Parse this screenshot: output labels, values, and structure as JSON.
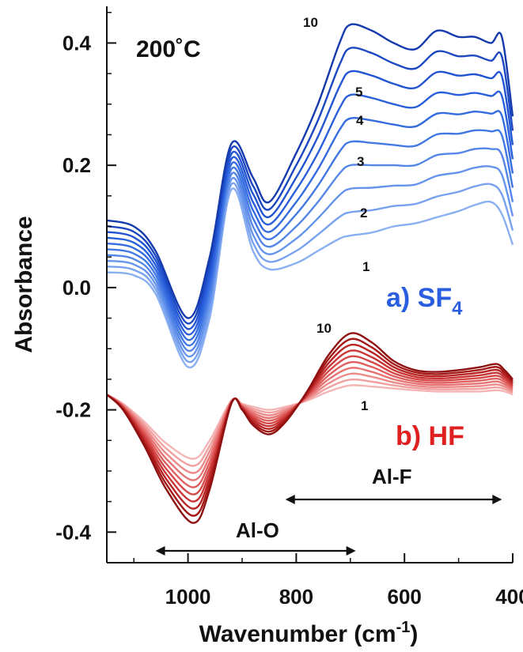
{
  "chart_data": {
    "type": "line",
    "xlabel": "Wavenumber (cm",
    "xlabel_sup": "-1",
    "xlabel_end": ")",
    "ylabel": "Absorbance",
    "xlim": [
      1150,
      400
    ],
    "ylim": [
      -0.45,
      0.46
    ],
    "x_ticks": [
      1000,
      800,
      600,
      400
    ],
    "x_tick_labels": [
      "1000",
      "800",
      "600",
      "400"
    ],
    "y_ticks": [
      0.4,
      0.2,
      0.0,
      -0.2,
      -0.4
    ],
    "y_tick_labels": [
      "0.4",
      "0.2",
      "0.0",
      "-0.2",
      "-0.4"
    ],
    "annotations": {
      "temperature": "200˚C",
      "sf4_label": "a) SF",
      "sf4_sub": "4",
      "hf_label": "b) HF",
      "alo_label": "Al-O",
      "alf_label": "Al-F",
      "sf4_curve_labels": [
        "10",
        "5",
        "4",
        "3",
        "2",
        "1"
      ],
      "hf_curve_labels": [
        "10",
        "1"
      ]
    },
    "alo_arrow": [
      1060,
      690
    ],
    "alf_arrow": [
      820,
      420
    ],
    "sf4_series": {
      "colors": [
        "#8ab0f2",
        "#78a2ef",
        "#6694ec",
        "#5486e8",
        "#4278e4",
        "#356be0",
        "#2a5fdb",
        "#2254d2",
        "#1b47c1",
        "#153aad"
      ],
      "x": [
        1150,
        1100,
        1060,
        1000,
        960,
        920,
        880,
        850,
        800,
        760,
        720,
        700,
        660,
        620,
        580,
        540,
        500,
        470,
        440,
        420,
        400
      ],
      "curve_1": [
        0.025,
        0.02,
        -0.01,
        -0.13,
        -0.05,
        0.16,
        0.06,
        0.03,
        0.04,
        0.06,
        0.08,
        0.085,
        0.09,
        0.1,
        0.105,
        0.115,
        0.125,
        0.135,
        0.14,
        0.12,
        0.07
      ],
      "curve_10": [
        0.11,
        0.1,
        0.06,
        -0.05,
        0.05,
        0.235,
        0.18,
        0.14,
        0.22,
        0.3,
        0.4,
        0.43,
        0.42,
        0.4,
        0.39,
        0.42,
        0.41,
        0.41,
        0.4,
        0.41,
        0.28
      ]
    },
    "hf_series": {
      "colors": [
        "#f5b5b5",
        "#f1a0a0",
        "#ec8a8a",
        "#e67474",
        "#df5e5e",
        "#d64848",
        "#c93535",
        "#b82424",
        "#a41818",
        "#8e1010"
      ],
      "x": [
        1150,
        1120,
        1080,
        1040,
        990,
        960,
        920,
        900,
        880,
        850,
        820,
        780,
        740,
        700,
        660,
        620,
        580,
        540,
        500,
        460,
        430,
        415,
        400
      ],
      "curve_1": [
        -0.175,
        -0.19,
        -0.22,
        -0.255,
        -0.28,
        -0.25,
        -0.185,
        -0.19,
        -0.195,
        -0.2,
        -0.195,
        -0.185,
        -0.17,
        -0.16,
        -0.162,
        -0.165,
        -0.168,
        -0.17,
        -0.17,
        -0.17,
        -0.168,
        -0.17,
        -0.175
      ],
      "curve_10": [
        -0.175,
        -0.2,
        -0.26,
        -0.33,
        -0.385,
        -0.33,
        -0.19,
        -0.2,
        -0.225,
        -0.24,
        -0.22,
        -0.17,
        -0.11,
        -0.075,
        -0.09,
        -0.12,
        -0.135,
        -0.138,
        -0.135,
        -0.13,
        -0.125,
        -0.135,
        -0.15
      ]
    }
  }
}
